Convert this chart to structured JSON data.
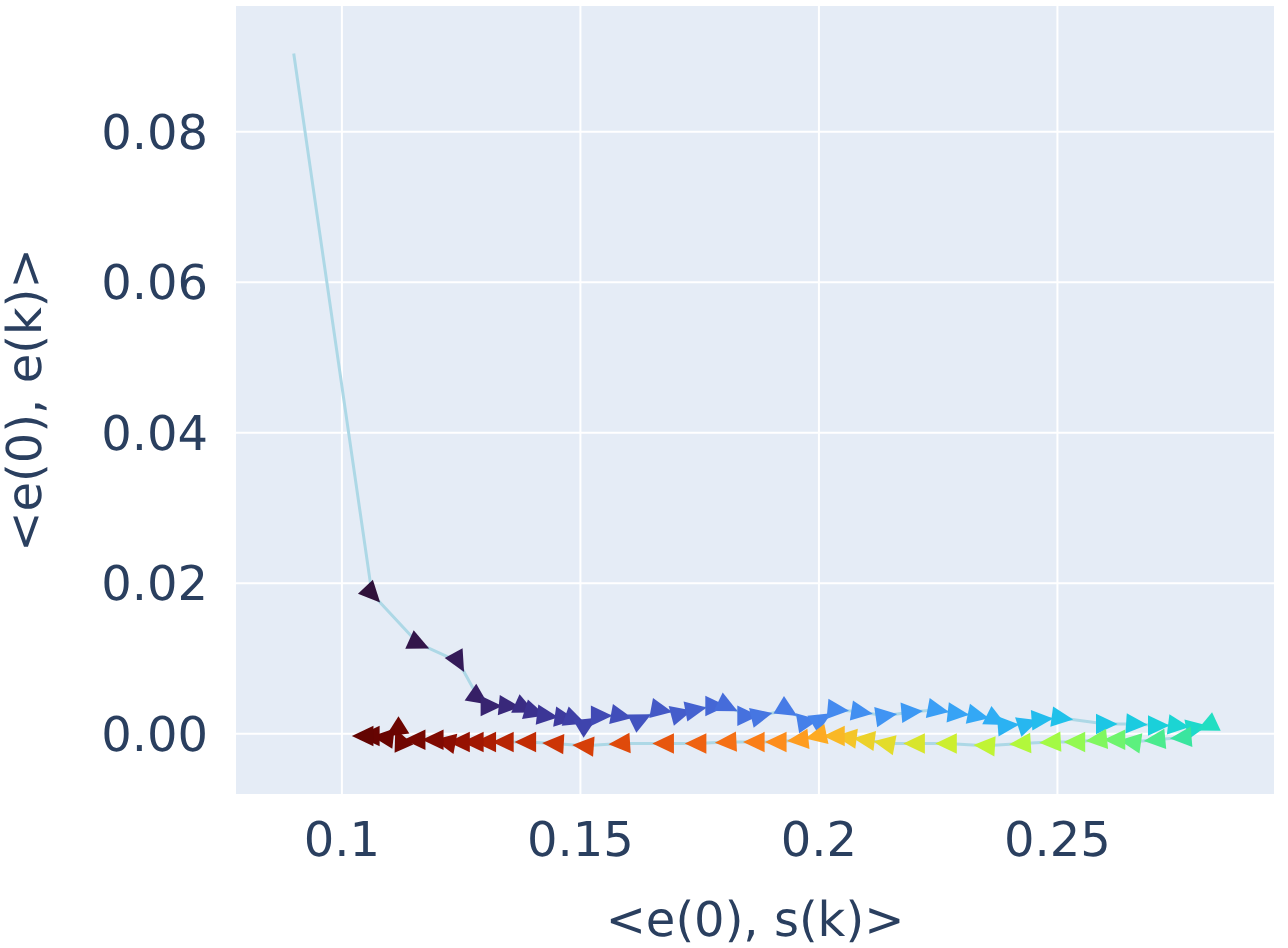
{
  "chart_data": {
    "type": "line",
    "xlabel": "<e(0), s(k)>",
    "ylabel": "<e(0), e(k)>",
    "xlim": [
      0.0778,
      0.2954
    ],
    "ylim": [
      -0.008,
      0.0967
    ],
    "xticks": [
      0.1,
      0.15,
      0.2,
      0.25
    ],
    "yticks": [
      {
        "value": 0,
        "label": "0.00"
      },
      {
        "value": 0.02,
        "label": "0.02"
      },
      {
        "value": 0.04,
        "label": "0.04"
      },
      {
        "value": 0.06,
        "label": "0.06"
      },
      {
        "value": 0.08,
        "label": "0.08"
      }
    ],
    "grid": true,
    "marker": "triangle",
    "line_style": "solid",
    "series": [
      {
        "color": "#add8e6",
        "x": [
          0.0899,
          0.1063,
          0.116,
          0.1244,
          0.1286,
          0.1311,
          0.1349,
          0.1382,
          0.1403,
          0.1429,
          0.1466,
          0.1487,
          0.1513,
          0.1542,
          0.1584,
          0.1626,
          0.1668,
          0.171,
          0.174,
          0.1782,
          0.1807,
          0.1849,
          0.1878,
          0.1933,
          0.1975,
          0.2004,
          0.2038,
          0.2088,
          0.2139,
          0.2193,
          0.2248,
          0.229,
          0.2332,
          0.237,
          0.2395,
          0.2437,
          0.2466,
          0.2508,
          0.2601,
          0.2664,
          0.271,
          0.2752,
          0.279,
          0.2815,
          0.2761,
          0.2706,
          0.2655,
          0.2622,
          0.2584,
          0.2538,
          0.2487,
          0.2424,
          0.2349,
          0.2269,
          0.2202,
          0.2139,
          0.2097,
          0.2059,
          0.2034,
          0.1996,
          0.1958,
          0.1912,
          0.1866,
          0.1807,
          0.1744,
          0.1676,
          0.1584,
          0.1508,
          0.1445,
          0.1387,
          0.134,
          0.1303,
          0.1277,
          0.1248,
          0.1218,
          0.1193,
          0.1155,
          0.1122,
          0.1113,
          0.1088,
          0.1059,
          0.1046
        ],
        "values": [
          0.0904,
          0.0186,
          0.012,
          0.0096,
          0.0048,
          0.0037,
          0.0037,
          0.0035,
          0.0029,
          0.0024,
          0.0021,
          0.0019,
          0.0013,
          0.0024,
          0.0024,
          0.0019,
          0.0032,
          0.0027,
          0.0032,
          0.0037,
          0.0037,
          0.0024,
          0.0024,
          0.0032,
          0.0016,
          0.0019,
          0.0032,
          0.0029,
          0.0024,
          0.0029,
          0.0032,
          0.0027,
          0.0024,
          0.0019,
          0.0011,
          0.0013,
          0.0019,
          0.0021,
          0.0013,
          0.0013,
          0.0011,
          0.0011,
          0.0008,
          0.0011,
          -0.0005,
          -0.0008,
          -0.0011,
          -0.0008,
          -0.0008,
          -0.0011,
          -0.0011,
          -0.0013,
          -0.0016,
          -0.0013,
          -0.0013,
          -0.0013,
          -0.0008,
          -0.0005,
          -0.0003,
          -0.0003,
          -0.0008,
          -0.0011,
          -0.0011,
          -0.0011,
          -0.0013,
          -0.0013,
          -0.0013,
          -0.0016,
          -0.0013,
          -0.0011,
          -0.0011,
          -0.0011,
          -0.0011,
          -0.0011,
          -0.0011,
          -0.0008,
          -0.0008,
          -0.0008,
          0.0005,
          -0.0005,
          -0.0003,
          -0.0003
        ],
        "colors": [
          null,
          "#30123b",
          "#32154a",
          "#341a58",
          "#361f66",
          "#382470",
          "#39287a",
          "#3a2c84",
          "#3b318e",
          "#3c3696",
          "#3d3a9e",
          "#3e3fa6",
          "#3f44ad",
          "#4049b4",
          "#414eba",
          "#4253c0",
          "#4358c6",
          "#445dcb",
          "#4562d0",
          "#4567d5",
          "#466cda",
          "#4671de",
          "#4676e2",
          "#467be6",
          "#4680e9",
          "#4585ec",
          "#448aef",
          "#428ff1",
          "#4094f3",
          "#3d99f4",
          "#3a9ef5",
          "#37a3f5",
          "#33a8f5",
          "#2fadf4",
          "#2bb2f2",
          "#27b7f0",
          "#23bced",
          "#20c1ea",
          "#1dc6e5",
          "#1bcbe0",
          "#1ad0da",
          "#1bd5d3",
          "#1ed9cb",
          "#22dec2",
          "#3ae59f",
          "#4beb8e",
          "#5cf07e",
          "#6ef46e",
          "#80f75f",
          "#92f951",
          "#a3fa45",
          "#b2f83b",
          "#c0f434",
          "#ccee2f",
          "#d8e52c",
          "#e3dc2b",
          "#ecd12a",
          "#f4c528",
          "#f9b826",
          "#fdaa23",
          "#fe9c20",
          "#fd8d1c",
          "#fa7e18",
          "#f57015",
          "#ef6211",
          "#e7560e",
          "#df4a0b",
          "#d63f08",
          "#cc3506",
          "#c22c04",
          "#b72403",
          "#ac1d02",
          "#a11702",
          "#961101",
          "#8b0d01",
          "#800a01",
          "#770801",
          "#700601",
          "#6c0501",
          "#690401",
          "#660402",
          "#630402"
        ]
      }
    ]
  }
}
